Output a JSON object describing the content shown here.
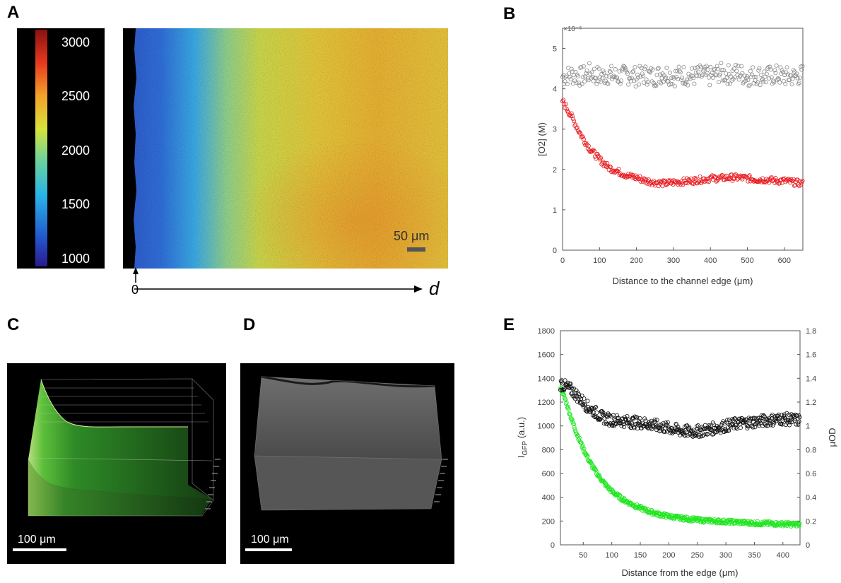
{
  "panels": {
    "A": "A",
    "B": "B",
    "C": "C",
    "D": "D",
    "E": "E"
  },
  "panel_a": {
    "colorbar_ticks": [
      "3000",
      "2500",
      "2000",
      "1500",
      "1000"
    ],
    "scalebar_label": "50 μm",
    "axis_origin": "0",
    "axis_end": "d"
  },
  "panel_c": {
    "scalebar_label": "100 μm"
  },
  "panel_d": {
    "scalebar_label": "100 μm"
  },
  "colors": {
    "red_series": "#e8161b",
    "gray_series": "#8a8a8a",
    "green_series": "#1fe61f",
    "black_series": "#111111"
  },
  "chart_data": [
    {
      "panel": "B",
      "type": "scatter",
      "xlabel": "Distance to the channel edge (μm)",
      "ylabel": "[O2] (M)",
      "y_multiplier": "×10⁻⁵",
      "xlim": [
        0,
        650
      ],
      "ylim": [
        0,
        5.5
      ],
      "xticks": [
        0,
        100,
        200,
        300,
        400,
        500,
        600
      ],
      "yticks": [
        0,
        1,
        2,
        3,
        4,
        5
      ],
      "grid": false,
      "series": [
        {
          "color": "#8a8a8a",
          "x": [
            0,
            25,
            50,
            75,
            100,
            125,
            150,
            175,
            200,
            225,
            250,
            275,
            300,
            325,
            350,
            375,
            400,
            425,
            450,
            475,
            500,
            525,
            550,
            575,
            600,
            625,
            650
          ],
          "y": [
            4.3,
            4.35,
            4.3,
            4.4,
            4.3,
            4.35,
            4.3,
            4.35,
            4.3,
            4.35,
            4.3,
            4.4,
            4.3,
            4.35,
            4.3,
            4.35,
            4.3,
            4.4,
            4.35,
            4.4,
            4.3,
            4.35,
            4.3,
            4.35,
            4.3,
            4.3,
            4.35
          ],
          "spread": 0.25
        },
        {
          "color": "#e8161b",
          "x": [
            0,
            25,
            50,
            75,
            100,
            125,
            150,
            175,
            200,
            225,
            250,
            275,
            300,
            325,
            350,
            375,
            400,
            425,
            450,
            475,
            500,
            525,
            550,
            575,
            600,
            625,
            650
          ],
          "y": [
            3.7,
            3.3,
            2.85,
            2.5,
            2.25,
            2.05,
            1.95,
            1.85,
            1.8,
            1.72,
            1.68,
            1.65,
            1.68,
            1.7,
            1.72,
            1.75,
            1.78,
            1.78,
            1.8,
            1.8,
            1.78,
            1.75,
            1.75,
            1.72,
            1.72,
            1.68,
            1.65
          ],
          "spread": 0.08
        }
      ]
    },
    {
      "panel": "E",
      "type": "scatter",
      "xlabel": "Distance from the edge (μm)",
      "ylabel": "I",
      "ylabel_sub": "GFP",
      "ylabel_suffix": " (a.u.)",
      "ylabel_right": "μOD",
      "xlim": [
        10,
        430
      ],
      "ylim": [
        0,
        1800
      ],
      "ylim_right": [
        0,
        1.8
      ],
      "xticks": [
        50,
        100,
        150,
        200,
        250,
        300,
        350,
        400
      ],
      "yticks": [
        0,
        200,
        400,
        600,
        800,
        1000,
        1200,
        1400,
        1600,
        1800
      ],
      "yticks_right": [
        "0",
        "0.2",
        "0.4",
        "0.6",
        "0.8",
        "1",
        "1.2",
        "1.4",
        "1.6",
        "1.8"
      ],
      "grid": false,
      "series": [
        {
          "color": "#1fe61f",
          "axis": "left",
          "x": [
            10,
            20,
            30,
            40,
            50,
            60,
            70,
            80,
            90,
            100,
            120,
            140,
            160,
            180,
            200,
            220,
            240,
            260,
            280,
            300,
            320,
            340,
            360,
            380,
            400,
            420,
            430
          ],
          "y": [
            1330,
            1200,
            1050,
            920,
            810,
            710,
            630,
            560,
            500,
            450,
            380,
            330,
            290,
            260,
            240,
            225,
            215,
            205,
            200,
            195,
            190,
            185,
            180,
            178,
            175,
            172,
            170
          ],
          "spread": 18
        },
        {
          "color": "#111111",
          "axis": "right",
          "x": [
            10,
            20,
            30,
            40,
            50,
            60,
            70,
            80,
            90,
            100,
            120,
            140,
            160,
            180,
            200,
            220,
            240,
            260,
            280,
            300,
            320,
            340,
            360,
            380,
            400,
            420,
            430
          ],
          "y": [
            1.35,
            1.33,
            1.3,
            1.25,
            1.2,
            1.15,
            1.12,
            1.08,
            1.06,
            1.05,
            1.04,
            1.03,
            1.02,
            1.0,
            0.98,
            0.96,
            0.95,
            0.96,
            0.98,
            1.0,
            1.02,
            1.03,
            1.04,
            1.05,
            1.06,
            1.05,
            1.05
          ],
          "spread": 0.05
        }
      ]
    }
  ]
}
